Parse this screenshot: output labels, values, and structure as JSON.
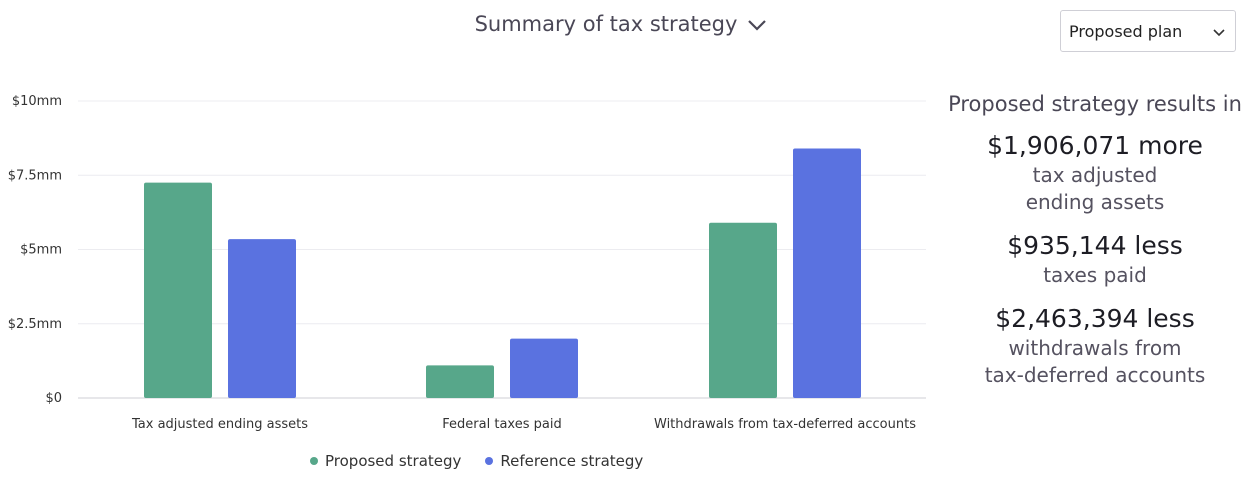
{
  "header": {
    "title": "Summary of tax strategy",
    "plan_select": "Proposed plan"
  },
  "colors": {
    "proposed": "#57a78a",
    "reference": "#5a72e0",
    "grid": "#ececf0",
    "axis_text": "#333333"
  },
  "icons": {
    "title_chevron": "chevron-down-icon",
    "select_chevron": "chevron-down-icon"
  },
  "chart_data": {
    "type": "bar",
    "categories": [
      "Tax adjusted ending assets",
      "Federal taxes paid",
      "Withdrawals from tax-deferred accounts"
    ],
    "series": [
      {
        "name": "Proposed strategy",
        "values": [
          7.25,
          1.1,
          5.9
        ]
      },
      {
        "name": "Reference strategy",
        "values": [
          5.35,
          2.0,
          8.4
        ]
      }
    ],
    "yticks": [
      {
        "value": 0,
        "label": "$0"
      },
      {
        "value": 2.5,
        "label": "$2.5mm"
      },
      {
        "value": 5,
        "label": "$5mm"
      },
      {
        "value": 7.5,
        "label": "$7.5mm"
      },
      {
        "value": 10,
        "label": "$10mm"
      }
    ],
    "ylim": [
      0,
      10
    ],
    "grid": true,
    "legend_position": "bottom"
  },
  "summary": {
    "intro": "Proposed strategy results in",
    "metrics": [
      {
        "value": "$1,906,071 more",
        "desc_lines": [
          "tax adjusted",
          "ending assets"
        ]
      },
      {
        "value": "$935,144 less",
        "desc_lines": [
          "taxes paid"
        ]
      },
      {
        "value": "$2,463,394 less",
        "desc_lines": [
          "withdrawals from",
          "tax-deferred accounts"
        ]
      }
    ]
  }
}
